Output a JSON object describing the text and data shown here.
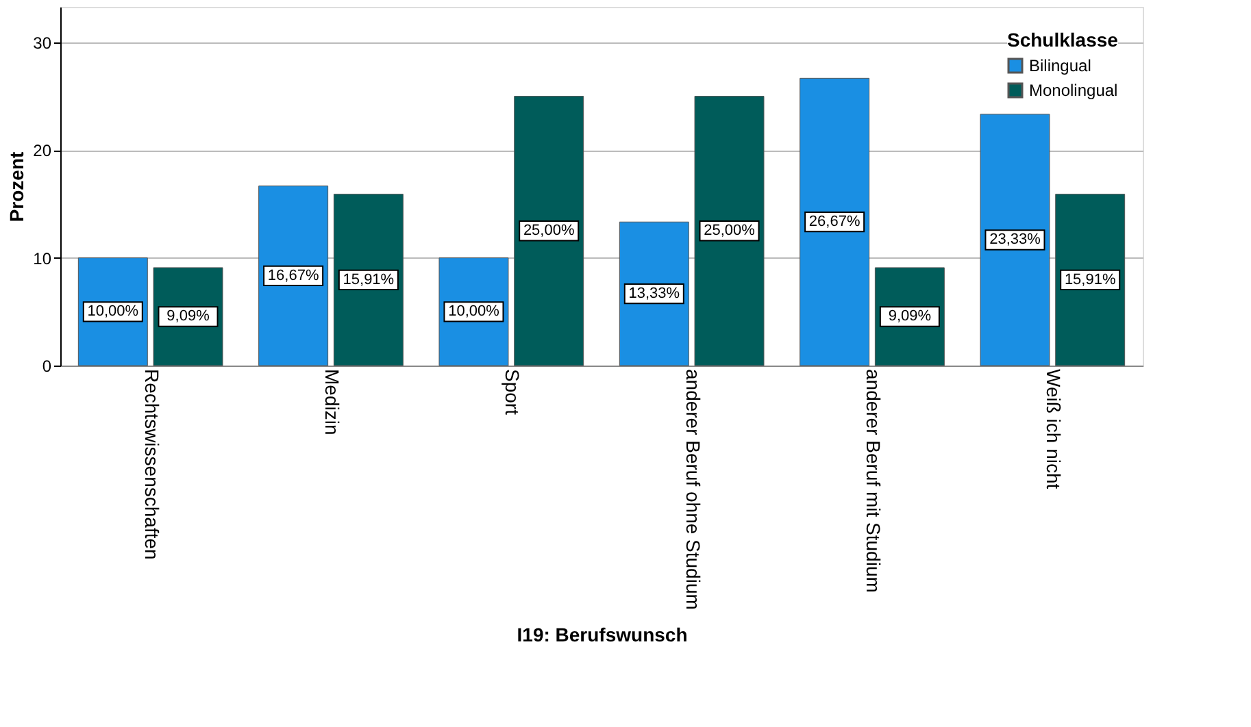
{
  "chart_data": {
    "type": "bar",
    "xlabel": "I19: Berufswunsch",
    "ylabel": "Prozent",
    "legend_title": "Schulklasse",
    "legend": "top right",
    "grid": "y",
    "categories": [
      "Rechtswissenschaften",
      "Medizin",
      "Sport",
      "anderer Beruf ohne Studium",
      "anderer Beruf mit Studium",
      "Weiß ich nicht"
    ],
    "series": [
      {
        "name": "Bilingual",
        "color": "#1a8fe3",
        "values": [
          10.0,
          16.67,
          10.0,
          13.33,
          26.67,
          23.33
        ],
        "value_labels": [
          "10,00%",
          "16,67%",
          "10,00%",
          "13,33%",
          "26,67%",
          "23,33%"
        ]
      },
      {
        "name": "Monolingual",
        "color": "#005c5a",
        "values": [
          9.09,
          15.91,
          25.0,
          25.0,
          9.09,
          15.91
        ],
        "value_labels": [
          "9,09%",
          "15,91%",
          "25,00%",
          "25,00%",
          "9,09%",
          "15,91%"
        ]
      }
    ],
    "ylim": [
      0,
      33.3
    ],
    "yticks": [
      0,
      10,
      20,
      30
    ]
  }
}
